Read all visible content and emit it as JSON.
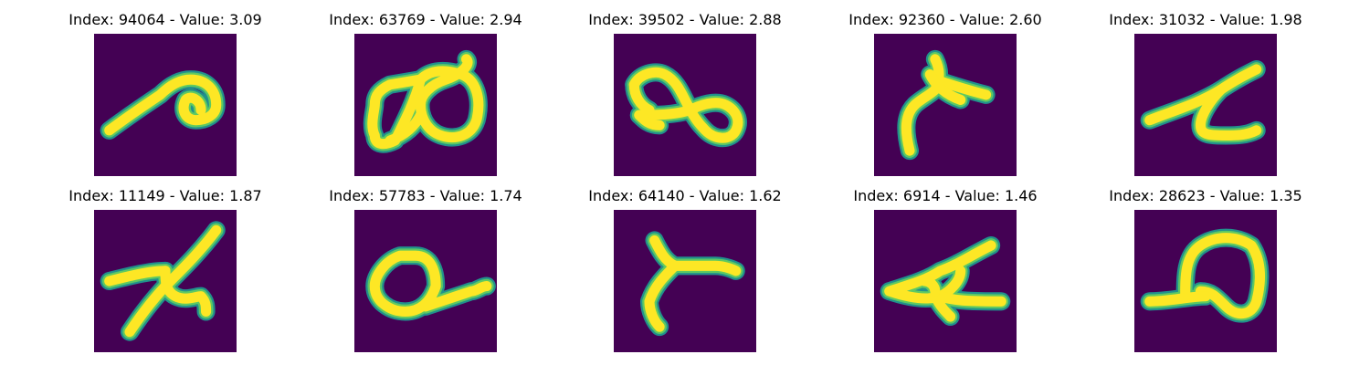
{
  "colors": {
    "background": "#440154",
    "stroke_edge": "#21918c",
    "stroke_mid": "#5ec962",
    "stroke_core": "#fde725"
  },
  "panels": [
    {
      "title": "Index: 94064 - Value: 3.09"
    },
    {
      "title": "Index: 63769 - Value: 2.94"
    },
    {
      "title": "Index: 39502 - Value: 2.88"
    },
    {
      "title": "Index: 92360 - Value: 2.60"
    },
    {
      "title": "Index: 31032 - Value: 1.98"
    },
    {
      "title": "Index: 11149 - Value: 1.87"
    },
    {
      "title": "Index: 57783 - Value: 1.74"
    },
    {
      "title": "Index: 64140 - Value: 1.62"
    },
    {
      "title": "Index: 6914 - Value: 1.46"
    },
    {
      "title": "Index: 28623 - Value: 1.35"
    }
  ]
}
